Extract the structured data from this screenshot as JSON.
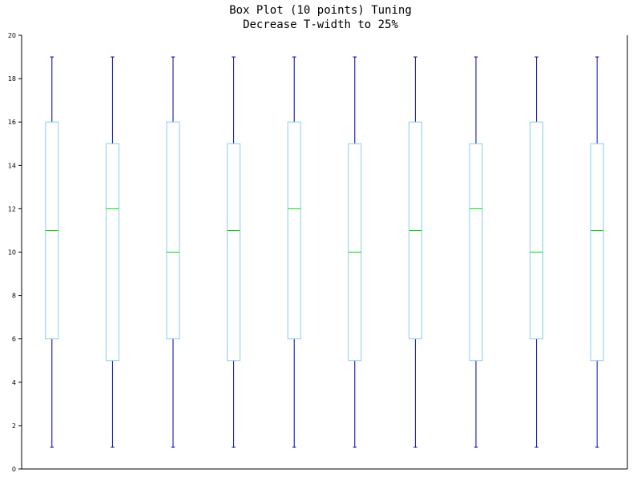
{
  "chart_data": {
    "type": "box",
    "title": "Box Plot (10 points) Tuning",
    "subtitle": "Decrease T-width to 25%",
    "xlabel": "",
    "ylabel": "",
    "ylim": [
      0,
      20
    ],
    "y_ticks": [
      0,
      2,
      4,
      6,
      8,
      10,
      12,
      14,
      16,
      18,
      20
    ],
    "grid": false,
    "legend": "none",
    "whisker_width_fraction": 0.25,
    "boxes": [
      {
        "min": 1,
        "q1": 6,
        "median": 11,
        "q3": 16,
        "max": 19
      },
      {
        "min": 1,
        "q1": 5,
        "median": 12,
        "q3": 15,
        "max": 19
      },
      {
        "min": 1,
        "q1": 6,
        "median": 10,
        "q3": 16,
        "max": 19
      },
      {
        "min": 1,
        "q1": 5,
        "median": 11,
        "q3": 15,
        "max": 19
      },
      {
        "min": 1,
        "q1": 6,
        "median": 12,
        "q3": 16,
        "max": 19
      },
      {
        "min": 1,
        "q1": 5,
        "median": 10,
        "q3": 15,
        "max": 19
      },
      {
        "min": 1,
        "q1": 6,
        "median": 11,
        "q3": 16,
        "max": 19
      },
      {
        "min": 1,
        "q1": 5,
        "median": 12,
        "q3": 15,
        "max": 19
      },
      {
        "min": 1,
        "q1": 6,
        "median": 10,
        "q3": 16,
        "max": 19
      },
      {
        "min": 1,
        "q1": 5,
        "median": 11,
        "q3": 15,
        "max": 19
      }
    ],
    "colors": {
      "box": "#87ceeb",
      "whisker": "#0000a0",
      "median": "#00dd00",
      "axis": "#000000"
    }
  }
}
